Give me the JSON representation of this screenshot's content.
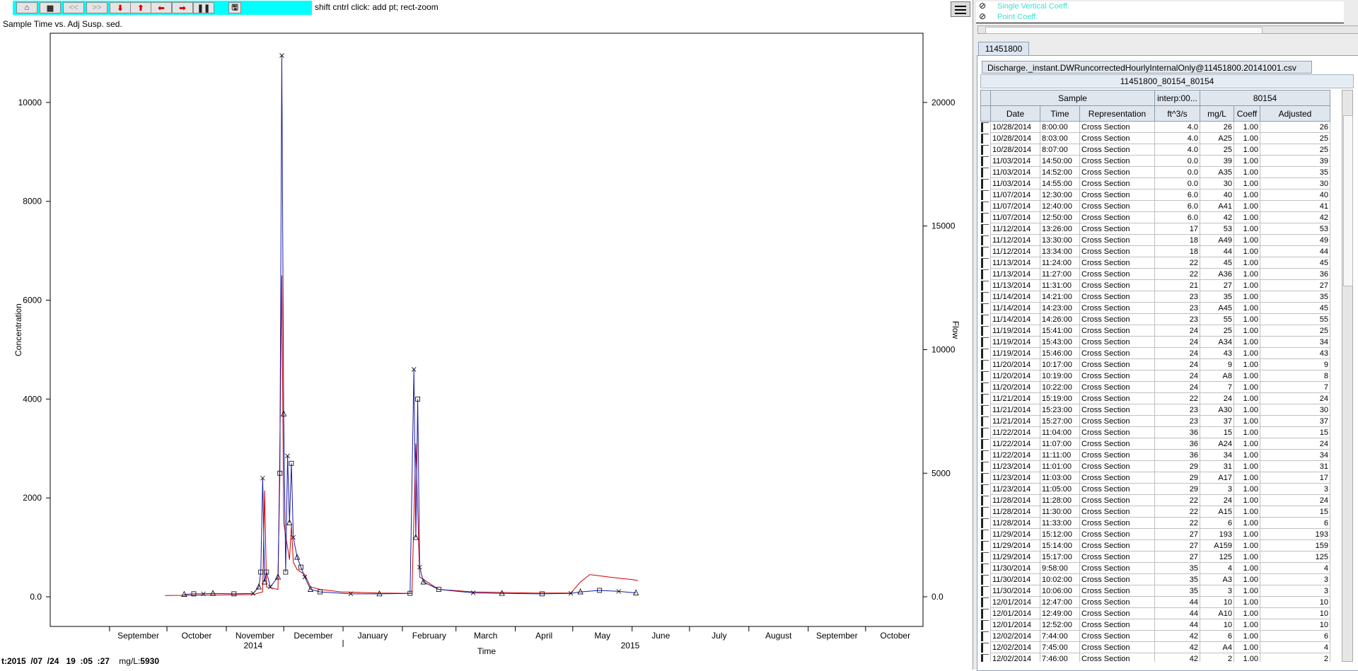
{
  "toolbar": {
    "buttons": [
      {
        "icon": "home-icon",
        "glyph": "⌂"
      },
      {
        "icon": "page-icon",
        "glyph": "▦"
      },
      {
        "icon": "back-icon",
        "glyph": "<<"
      },
      {
        "icon": "forward-icon",
        "glyph": ">>"
      },
      {
        "icon": "arrow-down-icon",
        "glyph": "⬇"
      },
      {
        "icon": "arrow-up-icon",
        "glyph": "⬆"
      },
      {
        "icon": "arrow-left-icon",
        "glyph": "⬅"
      },
      {
        "icon": "arrow-right-icon",
        "glyph": "➡"
      },
      {
        "icon": "pause-icon",
        "glyph": "❚❚"
      },
      {
        "icon": "save-icon",
        "glyph": "🖫"
      }
    ],
    "hint": "shift cntrl click: add pt; rect-zoom"
  },
  "plot": {
    "title": "Sample Time vs. Adj Susp. sed.",
    "status": {
      "y": "2015",
      "mo": "07",
      "d": "24",
      "h": "19",
      "mi": "05",
      "s": "27",
      "unit": "mg/L:",
      "value": "5930"
    }
  },
  "chart_data": {
    "type": "line",
    "xlabel": "Time",
    "ylabel": "Concentration",
    "y2label": "Flow",
    "ylim": [
      -600,
      11400
    ],
    "y2lim": [
      -1200,
      22800
    ],
    "yticks": [
      "0.0",
      "2000",
      "4000",
      "6000",
      "8000",
      "10000"
    ],
    "y2ticks": [
      "0.0",
      "5000",
      "10000",
      "15000",
      "20000"
    ],
    "month_labels": [
      "September",
      "October",
      "November",
      "December",
      "January",
      "February",
      "March",
      "April",
      "May",
      "June",
      "July",
      "August",
      "September",
      "October"
    ],
    "year_labels": [
      "2014",
      "2015"
    ],
    "xlim": [
      "2014-08-01",
      "2015-10-31"
    ],
    "colors": {
      "flow": "#d00000",
      "concentration": "#1a1aa8"
    },
    "series": [
      {
        "kind": "flow",
        "points": [
          [
            "2014-09-30",
            50
          ],
          [
            "2014-11-15",
            90
          ],
          [
            "2014-11-20",
            200
          ],
          [
            "2014-11-21",
            4300
          ],
          [
            "2014-11-22",
            400
          ],
          [
            "2014-11-28",
            300
          ],
          [
            "2014-11-29",
            6000
          ],
          [
            "2014-11-30",
            13000
          ],
          [
            "2014-12-01",
            3000
          ],
          [
            "2014-12-04",
            1500
          ],
          [
            "2014-12-05",
            2900
          ],
          [
            "2014-12-06",
            1400
          ],
          [
            "2014-12-08",
            1100
          ],
          [
            "2014-12-12",
            900
          ],
          [
            "2014-12-15",
            400
          ],
          [
            "2014-12-20",
            300
          ],
          [
            "2014-12-31",
            200
          ],
          [
            "2015-01-20",
            150
          ],
          [
            "2015-02-06",
            140
          ],
          [
            "2015-02-08",
            6200
          ],
          [
            "2015-02-10",
            800
          ],
          [
            "2015-02-20",
            300
          ],
          [
            "2015-03-10",
            200
          ],
          [
            "2015-04-10",
            150
          ],
          [
            "2015-04-30",
            150
          ],
          [
            "2015-05-05",
            600
          ],
          [
            "2015-05-10",
            900
          ],
          [
            "2015-05-20",
            800
          ],
          [
            "2015-05-25",
            750
          ],
          [
            "2015-06-01",
            700
          ],
          [
            "2015-06-04",
            650
          ]
        ]
      },
      {
        "kind": "concentration",
        "points": [
          [
            "2014-10-10",
            50
          ],
          [
            "2014-10-15",
            60
          ],
          [
            "2014-10-20",
            60
          ],
          [
            "2014-10-25",
            70
          ],
          [
            "2014-11-05",
            60
          ],
          [
            "2014-11-15",
            70
          ],
          [
            "2014-11-18",
            200
          ],
          [
            "2014-11-19",
            500
          ],
          [
            "2014-11-20",
            2400
          ],
          [
            "2014-11-21",
            300
          ],
          [
            "2014-11-22",
            500
          ],
          [
            "2014-11-24",
            200
          ],
          [
            "2014-11-28",
            400
          ],
          [
            "2014-11-29",
            2500
          ],
          [
            "2014-11-30",
            10950
          ],
          [
            "2014-12-01",
            3700
          ],
          [
            "2014-12-02",
            500
          ],
          [
            "2014-12-03",
            2850
          ],
          [
            "2014-12-04",
            1500
          ],
          [
            "2014-12-05",
            2700
          ],
          [
            "2014-12-06",
            1200
          ],
          [
            "2014-12-08",
            800
          ],
          [
            "2014-12-10",
            600
          ],
          [
            "2014-12-12",
            400
          ],
          [
            "2014-12-15",
            150
          ],
          [
            "2014-12-20",
            100
          ],
          [
            "2015-01-05",
            60
          ],
          [
            "2015-01-20",
            60
          ],
          [
            "2015-02-05",
            70
          ],
          [
            "2015-02-07",
            4600
          ],
          [
            "2015-02-08",
            1200
          ],
          [
            "2015-02-09",
            4000
          ],
          [
            "2015-02-10",
            600
          ],
          [
            "2015-02-12",
            300
          ],
          [
            "2015-02-20",
            150
          ],
          [
            "2015-03-10",
            80
          ],
          [
            "2015-03-25",
            70
          ],
          [
            "2015-04-15",
            60
          ],
          [
            "2015-04-30",
            70
          ],
          [
            "2015-05-05",
            100
          ],
          [
            "2015-05-15",
            130
          ],
          [
            "2015-05-25",
            110
          ],
          [
            "2015-06-03",
            80
          ]
        ]
      }
    ]
  },
  "panel": {
    "legend": [
      "Single Vertical Coeff.",
      "Point Coeff."
    ],
    "site_tab": "11451800",
    "file_tab": "Discharge._instant.DWRuncorrectedHourlyInternalOnly@11451800.20141001.csv",
    "table_title": "11451800_80154_80154",
    "group_headers": [
      "Sample",
      "interp:00...",
      "80154"
    ],
    "col_headers": [
      "Date",
      "Time",
      "Representation",
      "ft^3/s",
      "mg/L",
      "Coeff",
      "Adjusted"
    ],
    "rows": [
      [
        "10/28/2014",
        "8:00:00",
        "Cross Section",
        "4.0",
        "26",
        "1.00",
        "26"
      ],
      [
        "10/28/2014",
        "8:03:00",
        "Cross Section",
        "4.0",
        "A25",
        "1.00",
        "25"
      ],
      [
        "10/28/2014",
        "8:07:00",
        "Cross Section",
        "4.0",
        "25",
        "1.00",
        "25"
      ],
      [
        "11/03/2014",
        "14:50:00",
        "Cross Section",
        "0.0",
        "39",
        "1.00",
        "39"
      ],
      [
        "11/03/2014",
        "14:52:00",
        "Cross Section",
        "0.0",
        "A35",
        "1.00",
        "35"
      ],
      [
        "11/03/2014",
        "14:55:00",
        "Cross Section",
        "0.0",
        "30",
        "1.00",
        "30"
      ],
      [
        "11/07/2014",
        "12:30:00",
        "Cross Section",
        "6.0",
        "40",
        "1.00",
        "40"
      ],
      [
        "11/07/2014",
        "12:40:00",
        "Cross Section",
        "6.0",
        "A41",
        "1.00",
        "41"
      ],
      [
        "11/07/2014",
        "12:50:00",
        "Cross Section",
        "6.0",
        "42",
        "1.00",
        "42"
      ],
      [
        "11/12/2014",
        "13:26:00",
        "Cross Section",
        "17",
        "53",
        "1.00",
        "53"
      ],
      [
        "11/12/2014",
        "13:30:00",
        "Cross Section",
        "18",
        "A49",
        "1.00",
        "49"
      ],
      [
        "11/12/2014",
        "13:34:00",
        "Cross Section",
        "18",
        "44",
        "1.00",
        "44"
      ],
      [
        "11/13/2014",
        "11:24:00",
        "Cross Section",
        "22",
        "45",
        "1.00",
        "45"
      ],
      [
        "11/13/2014",
        "11:27:00",
        "Cross Section",
        "22",
        "A36",
        "1.00",
        "36"
      ],
      [
        "11/13/2014",
        "11:31:00",
        "Cross Section",
        "21",
        "27",
        "1.00",
        "27"
      ],
      [
        "11/14/2014",
        "14:21:00",
        "Cross Section",
        "23",
        "35",
        "1.00",
        "35"
      ],
      [
        "11/14/2014",
        "14:23:00",
        "Cross Section",
        "23",
        "A45",
        "1.00",
        "45"
      ],
      [
        "11/14/2014",
        "14:26:00",
        "Cross Section",
        "23",
        "55",
        "1.00",
        "55"
      ],
      [
        "11/19/2014",
        "15:41:00",
        "Cross Section",
        "24",
        "25",
        "1.00",
        "25"
      ],
      [
        "11/19/2014",
        "15:43:00",
        "Cross Section",
        "24",
        "A34",
        "1.00",
        "34"
      ],
      [
        "11/19/2014",
        "15:46:00",
        "Cross Section",
        "24",
        "43",
        "1.00",
        "43"
      ],
      [
        "11/20/2014",
        "10:17:00",
        "Cross Section",
        "24",
        "9",
        "1.00",
        "9"
      ],
      [
        "11/20/2014",
        "10:19:00",
        "Cross Section",
        "24",
        "A8",
        "1.00",
        "8"
      ],
      [
        "11/20/2014",
        "10:22:00",
        "Cross Section",
        "24",
        "7",
        "1.00",
        "7"
      ],
      [
        "11/21/2014",
        "15:19:00",
        "Cross Section",
        "22",
        "24",
        "1.00",
        "24"
      ],
      [
        "11/21/2014",
        "15:23:00",
        "Cross Section",
        "23",
        "A30",
        "1.00",
        "30"
      ],
      [
        "11/21/2014",
        "15:27:00",
        "Cross Section",
        "23",
        "37",
        "1.00",
        "37"
      ],
      [
        "11/22/2014",
        "11:04:00",
        "Cross Section",
        "36",
        "15",
        "1.00",
        "15"
      ],
      [
        "11/22/2014",
        "11:07:00",
        "Cross Section",
        "36",
        "A24",
        "1.00",
        "24"
      ],
      [
        "11/22/2014",
        "11:11:00",
        "Cross Section",
        "36",
        "34",
        "1.00",
        "34"
      ],
      [
        "11/23/2014",
        "11:01:00",
        "Cross Section",
        "29",
        "31",
        "1.00",
        "31"
      ],
      [
        "11/23/2014",
        "11:03:00",
        "Cross Section",
        "29",
        "A17",
        "1.00",
        "17"
      ],
      [
        "11/23/2014",
        "11:05:00",
        "Cross Section",
        "29",
        "3",
        "1.00",
        "3"
      ],
      [
        "11/28/2014",
        "11:28:00",
        "Cross Section",
        "22",
        "24",
        "1.00",
        "24"
      ],
      [
        "11/28/2014",
        "11:30:00",
        "Cross Section",
        "22",
        "A15",
        "1.00",
        "15"
      ],
      [
        "11/28/2014",
        "11:33:00",
        "Cross Section",
        "22",
        "6",
        "1.00",
        "6"
      ],
      [
        "11/29/2014",
        "15:12:00",
        "Cross Section",
        "27",
        "193",
        "1.00",
        "193"
      ],
      [
        "11/29/2014",
        "15:14:00",
        "Cross Section",
        "27",
        "A159",
        "1.00",
        "159"
      ],
      [
        "11/29/2014",
        "15:17:00",
        "Cross Section",
        "27",
        "125",
        "1.00",
        "125"
      ],
      [
        "11/30/2014",
        "9:58:00",
        "Cross Section",
        "35",
        "4",
        "1.00",
        "4"
      ],
      [
        "11/30/2014",
        "10:02:00",
        "Cross Section",
        "35",
        "A3",
        "1.00",
        "3"
      ],
      [
        "11/30/2014",
        "10:06:00",
        "Cross Section",
        "35",
        "3",
        "1.00",
        "3"
      ],
      [
        "12/01/2014",
        "12:47:00",
        "Cross Section",
        "44",
        "10",
        "1.00",
        "10"
      ],
      [
        "12/01/2014",
        "12:49:00",
        "Cross Section",
        "44",
        "A10",
        "1.00",
        "10"
      ],
      [
        "12/01/2014",
        "12:52:00",
        "Cross Section",
        "44",
        "10",
        "1.00",
        "10"
      ],
      [
        "12/02/2014",
        "7:44:00",
        "Cross Section",
        "42",
        "6",
        "1.00",
        "6"
      ],
      [
        "12/02/2014",
        "7:45:00",
        "Cross Section",
        "42",
        "A4",
        "1.00",
        "4"
      ],
      [
        "12/02/2014",
        "7:46:00",
        "Cross Section",
        "42",
        "2",
        "1.00",
        "2"
      ]
    ]
  }
}
